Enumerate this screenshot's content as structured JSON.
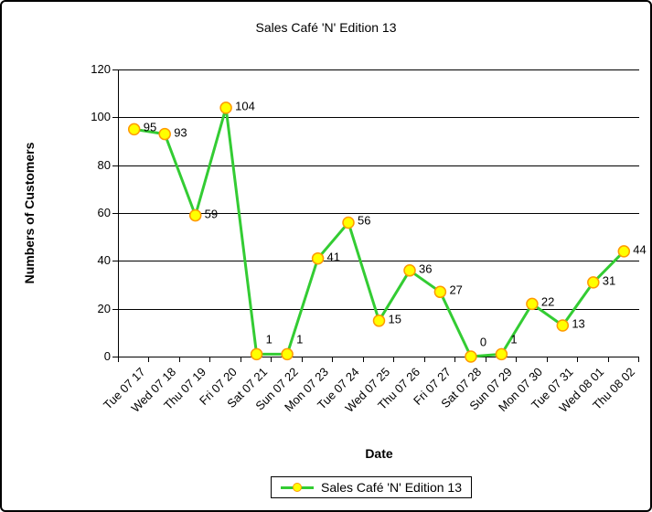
{
  "chart_data": {
    "type": "line",
    "title": "Sales Café 'N' Edition 13",
    "xlabel": "Date",
    "ylabel": "Numbers of Customers",
    "categories": [
      "Tue 07 17",
      "Wed 07 18",
      "Thu 07 19",
      "Fri 07 20",
      "Sat 07 21",
      "Sun 07 22",
      "Mon 07 23",
      "Tue 07 24",
      "Wed 07 25",
      "Thu 07 26",
      "Fri 07 27",
      "Sat 07 28",
      "Sun 07 29",
      "Mon 07 30",
      "Tue 07 31",
      "Wed 08 01",
      "Thu 08 02"
    ],
    "series": [
      {
        "name": "Sales Café 'N' Edition 13",
        "values": [
          95,
          93,
          59,
          104,
          1,
          1,
          41,
          56,
          15,
          36,
          27,
          0,
          1,
          22,
          13,
          31,
          44
        ]
      }
    ],
    "ylim": [
      0,
      120
    ],
    "yticks": [
      0,
      20,
      40,
      60,
      80,
      100,
      120
    ],
    "grid": true,
    "data_labels": true,
    "legend": {
      "position": "bottom-center",
      "entries": [
        "Sales Café 'N' Edition 13"
      ]
    },
    "colors": {
      "line": "#33CC33",
      "marker_fill": "#FFFF00",
      "marker_border": "#FF9900",
      "grid": "#000000",
      "axis": "#000000",
      "text": "#000000",
      "background": "#FFFFFF"
    }
  }
}
